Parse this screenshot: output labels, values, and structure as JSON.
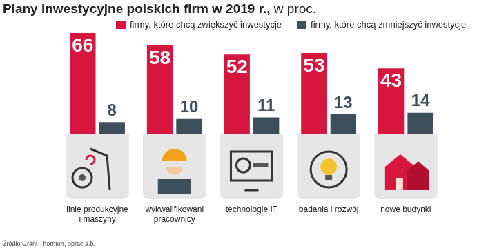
{
  "chart_data": {
    "type": "bar",
    "title": "Plany inwestycyjne polskich firm w 2019 r.,",
    "subtitle": "w proc.",
    "categories": [
      "linie produkcyjne i maszyny",
      "wykwalifikowani pracownicy",
      "technologie IT",
      "badania i rozwój",
      "nowe budynki"
    ],
    "series": [
      {
        "name": "firmy, które chcą zwiększyć inwestycje",
        "color": "#d7163f",
        "values": [
          66,
          58,
          52,
          53,
          43
        ]
      },
      {
        "name": "firmy, które chcą zmniejszyć inwestycje",
        "color": "#3d4f5b",
        "values": [
          8,
          10,
          11,
          13,
          14
        ]
      }
    ],
    "ylim": [
      0,
      66
    ],
    "grid": false,
    "legend": "top",
    "data_labels": true,
    "tick_labels": "x",
    "source": "Źródło:Grant Thornton, oprac.a.b."
  }
}
